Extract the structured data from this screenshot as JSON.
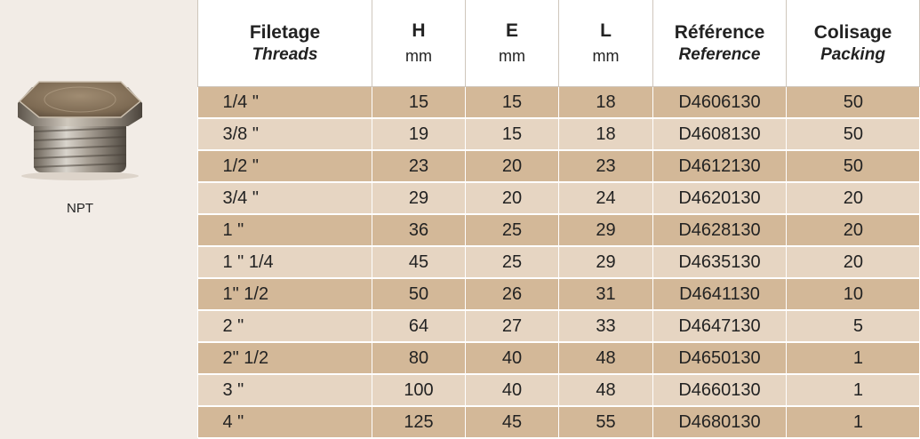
{
  "product": {
    "label": "NPT"
  },
  "table": {
    "headers": [
      {
        "title": "Filetage",
        "subtitle": "Threads",
        "unit": ""
      },
      {
        "title": "H",
        "subtitle": "",
        "unit": "mm"
      },
      {
        "title": "E",
        "subtitle": "",
        "unit": "mm"
      },
      {
        "title": "L",
        "subtitle": "",
        "unit": "mm"
      },
      {
        "title": "Référence",
        "subtitle": "Reference",
        "unit": ""
      },
      {
        "title": "Colisage",
        "subtitle": "Packing",
        "unit": ""
      }
    ],
    "rows": [
      [
        "1/4 \"",
        "15",
        "15",
        "18",
        "D4606130",
        "50"
      ],
      [
        "3/8 \"",
        "19",
        "15",
        "18",
        "D4608130",
        "50"
      ],
      [
        "1/2 \"",
        "23",
        "20",
        "23",
        "D4612130",
        "50"
      ],
      [
        "3/4 \"",
        "29",
        "20",
        "24",
        "D4620130",
        "20"
      ],
      [
        "1 \"",
        "36",
        "25",
        "29",
        "D4628130",
        "20"
      ],
      [
        "1 \" 1/4",
        "45",
        "25",
        "29",
        "D4635130",
        "20"
      ],
      [
        "1\" 1/2",
        "50",
        "26",
        "31",
        "D4641130",
        "10"
      ],
      [
        "2 \"",
        "64",
        "27",
        "33",
        "D4647130",
        "5"
      ],
      [
        "2\" 1/2",
        "80",
        "40",
        "48",
        "D4650130",
        "1"
      ],
      [
        "3 \"",
        "100",
        "40",
        "48",
        "D4660130",
        "1"
      ],
      [
        "4 \"",
        "125",
        "45",
        "55",
        "D4680130",
        "1"
      ]
    ]
  },
  "colors": {
    "row_dark": "#d3b898",
    "row_light": "#e6d5c2",
    "background": "#f2ece6"
  }
}
